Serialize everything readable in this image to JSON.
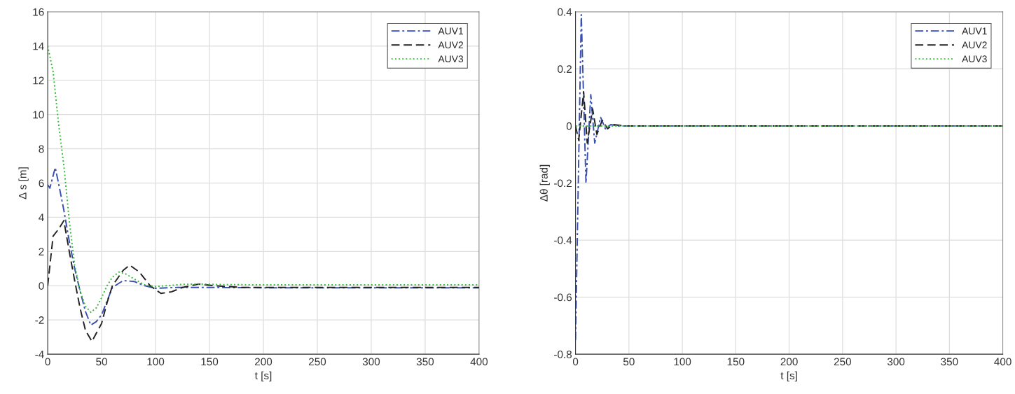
{
  "chart_data": [
    {
      "type": "line",
      "xlabel": "t [s]",
      "ylabel": "Δ s [m]",
      "xlim": [
        0,
        400
      ],
      "ylim": [
        -4,
        16
      ],
      "xticks": [
        0,
        50,
        100,
        150,
        200,
        250,
        300,
        350,
        400
      ],
      "yticks": [
        -4,
        -2,
        0,
        2,
        4,
        6,
        8,
        10,
        12,
        14,
        16
      ],
      "grid": true,
      "legend": "top right",
      "series": [
        {
          "name": "AUV1",
          "color": "#3a50b0",
          "line_style": "dashdot",
          "x": [
            0,
            2,
            7,
            10,
            15,
            20,
            25,
            30,
            35,
            40,
            45,
            50,
            55,
            60,
            70,
            80,
            90,
            100,
            120,
            150,
            200,
            400
          ],
          "values": [
            5.9,
            5.7,
            6.9,
            6.0,
            4.4,
            2.6,
            1.0,
            -0.3,
            -1.5,
            -2.3,
            -2.1,
            -1.7,
            -0.9,
            -0.1,
            0.3,
            0.25,
            0.0,
            -0.15,
            -0.1,
            -0.1,
            -0.12,
            -0.12
          ]
        },
        {
          "name": "AUV2",
          "color": "#222222",
          "line_style": "dashed",
          "x": [
            0,
            5,
            10,
            15,
            20,
            25,
            30,
            35,
            41,
            50,
            55,
            60,
            70,
            76,
            85,
            95,
            105,
            115,
            125,
            140,
            155,
            180,
            400
          ],
          "values": [
            0,
            2.9,
            3.3,
            3.8,
            2.0,
            0.3,
            -1.3,
            -2.6,
            -3.25,
            -2.2,
            -1.0,
            0.0,
            0.9,
            1.2,
            0.8,
            0.0,
            -0.45,
            -0.35,
            -0.1,
            0.1,
            0.0,
            -0.1,
            -0.1
          ]
        },
        {
          "name": "AUV3",
          "color": "#33bb33",
          "line_style": "dotted",
          "x": [
            0,
            5,
            10,
            15,
            20,
            25,
            30,
            35,
            40,
            45,
            50,
            55,
            60,
            66,
            72,
            80,
            90,
            100,
            110,
            125,
            140,
            160,
            200,
            400
          ],
          "values": [
            14,
            12.5,
            9.5,
            7,
            3.8,
            1.2,
            -0.3,
            -1.2,
            -1.55,
            -1.3,
            -0.7,
            0.0,
            0.5,
            0.8,
            0.7,
            0.4,
            0.05,
            -0.05,
            0.0,
            0.08,
            0.1,
            0.07,
            0.05,
            0.05
          ]
        }
      ]
    },
    {
      "type": "line",
      "xlabel": "t [s]",
      "ylabel": "Δθ [rad]",
      "xlim": [
        0,
        400
      ],
      "ylim": [
        -0.8,
        0.4
      ],
      "xticks": [
        0,
        50,
        100,
        150,
        200,
        250,
        300,
        350,
        400
      ],
      "yticks": [
        -0.8,
        -0.6,
        -0.4,
        -0.2,
        0,
        0.2,
        0.4
      ],
      "grid": true,
      "legend": "top right",
      "series": [
        {
          "name": "AUV1",
          "color": "#3a50b0",
          "line_style": "dashdot",
          "x": [
            0,
            5.4,
            9.8,
            14.3,
            18,
            23.5,
            28,
            33,
            40,
            400
          ],
          "values": [
            -0.75,
            0.39,
            -0.2,
            0.11,
            -0.06,
            0.03,
            -0.01,
            0.005,
            0,
            0
          ]
        },
        {
          "name": "AUV2",
          "color": "#222222",
          "line_style": "dashed",
          "x": [
            0,
            3,
            7.6,
            11,
            16,
            20,
            25,
            30,
            35,
            45,
            400
          ],
          "values": [
            0,
            -0.05,
            0.12,
            -0.06,
            0.06,
            -0.03,
            0.02,
            -0.01,
            0.005,
            0,
            0
          ]
        },
        {
          "name": "AUV3",
          "color": "#33bb33",
          "line_style": "dotted",
          "x": [
            0,
            400
          ],
          "values": [
            0,
            0
          ]
        }
      ]
    }
  ]
}
